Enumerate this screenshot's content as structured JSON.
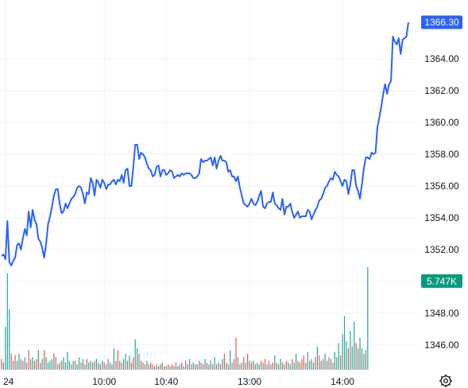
{
  "chart_data": {
    "type": "line",
    "colors": {
      "price_line": "#2962ff",
      "volume_up": "#26a69a",
      "volume_down": "#ef5350",
      "last_price_badge": "#2962ff",
      "volume_badge": "#089981",
      "grid": "#f0f3fa"
    },
    "price_axis": {
      "ticks": [
        1346.0,
        1348.0,
        1350.0,
        1352.0,
        1354.0,
        1356.0,
        1358.0,
        1360.0,
        1362.0,
        1364.0
      ],
      "tick_labels": [
        "1346.00",
        "1348.00",
        "1350.00",
        "1352.00",
        "1354.00",
        "1356.00",
        "1358.00",
        "1360.00",
        "1362.00",
        "1364.00"
      ],
      "range": [
        1344.4,
        1367.7
      ]
    },
    "time_axis": {
      "tick_labels": [
        "24",
        "10:00",
        "10:40",
        "13:00",
        "14:00"
      ],
      "tick_index": [
        2,
        53,
        85,
        128,
        176
      ]
    },
    "last_price": {
      "label": "1366.30",
      "value": 1366.3
    },
    "last_volume": {
      "label": "5.747K"
    },
    "series": [
      {
        "values": [
          1351.6,
          1351.7,
          1351.4,
          1353.8,
          1351.2,
          1351.0,
          1351.3,
          1351.5,
          1352.3,
          1352.4,
          1352.0,
          1352.7,
          1353.3,
          1352.9,
          1354.4,
          1353.4,
          1354.5,
          1353.9,
          1353.6,
          1352.7,
          1352.5,
          1352.1,
          1351.5,
          1352.4,
          1353.6,
          1354.1,
          1354.7,
          1355.4,
          1355.8,
          1355.8,
          1354.9,
          1354.3,
          1354.4,
          1354.9,
          1354.6,
          1354.9,
          1355.2,
          1355.3,
          1355.5,
          1355.9,
          1356.0,
          1355.9,
          1355.5,
          1354.9,
          1355.6,
          1355.5,
          1356.5,
          1356.2,
          1355.4,
          1356.4,
          1356.2,
          1355.9,
          1356.4,
          1356.2,
          1355.8,
          1356.1,
          1356.1,
          1356.3,
          1356.4,
          1356.1,
          1356.4,
          1356.3,
          1356.7,
          1356.2,
          1357.0,
          1357.1,
          1356.0,
          1356.0,
          1357.2,
          1358.6,
          1358.6,
          1357.7,
          1358.1,
          1358.0,
          1357.8,
          1357.4,
          1357.1,
          1357.0,
          1356.6,
          1356.7,
          1357.2,
          1357.3,
          1356.6,
          1357.0,
          1357.0,
          1356.7,
          1356.8,
          1357.0,
          1356.9,
          1356.5,
          1356.6,
          1356.7,
          1356.6,
          1356.8,
          1356.7,
          1356.8,
          1356.8,
          1356.8,
          1356.7,
          1356.5,
          1356.5,
          1356.6,
          1356.8,
          1357.7,
          1357.5,
          1357.6,
          1357.6,
          1357.7,
          1357.8,
          1357.3,
          1357.8,
          1357.1,
          1357.6,
          1357.9,
          1357.6,
          1357.6,
          1357.5,
          1356.9,
          1357.0,
          1356.6,
          1356.6,
          1356.3,
          1356.6,
          1355.9,
          1355.4,
          1354.9,
          1354.8,
          1354.7,
          1354.9,
          1355.2,
          1354.9,
          1354.8,
          1355.0,
          1355.4,
          1355.7,
          1354.7,
          1354.6,
          1354.9,
          1355.0,
          1355.0,
          1355.6,
          1354.9,
          1354.8,
          1354.6,
          1354.5,
          1355.2,
          1354.2,
          1354.7,
          1354.7,
          1354.9,
          1354.4,
          1354.0,
          1354.2,
          1354.4,
          1354.0,
          1354.1,
          1354.1,
          1354.1,
          1354.5,
          1354.4,
          1353.9,
          1354.2,
          1354.5,
          1354.7,
          1355.1,
          1355.2,
          1355.5,
          1355.9,
          1356.0,
          1356.3,
          1356.5,
          1356.4,
          1356.9,
          1356.7,
          1356.6,
          1356.3,
          1356.0,
          1356.4,
          1356.3,
          1355.5,
          1356.1,
          1357.0,
          1357.0,
          1356.0,
          1355.7,
          1355.2,
          1356.1,
          1357.1,
          1357.8,
          1357.8,
          1357.7,
          1358.1,
          1358.0,
          1358.1,
          1359.7,
          1360.3,
          1361.0,
          1361.8,
          1362.4,
          1361.8,
          1362.4,
          1362.6,
          1365.4,
          1365.1,
          1364.9,
          1365.3,
          1364.3,
          1365.2,
          1365.3,
          1365.4,
          1366.3
        ]
      }
    ],
    "volume": [
      {
        "v": 0.6,
        "up": false
      },
      {
        "v": 0.4,
        "up": true
      },
      {
        "v": 2.4,
        "up": true
      },
      {
        "v": 5.4,
        "up": true
      },
      {
        "v": 3.4,
        "up": true
      },
      {
        "v": 0.9,
        "up": false
      },
      {
        "v": 0.5,
        "up": true
      },
      {
        "v": 0.8,
        "up": false
      },
      {
        "v": 0.5,
        "up": true
      },
      {
        "v": 0.9,
        "up": true
      },
      {
        "v": 0.6,
        "up": false
      },
      {
        "v": 0.5,
        "up": true
      },
      {
        "v": 0.7,
        "up": true
      },
      {
        "v": 0.4,
        "up": false
      },
      {
        "v": 1.1,
        "up": false
      },
      {
        "v": 0.6,
        "up": true
      },
      {
        "v": 0.7,
        "up": true
      },
      {
        "v": 0.5,
        "up": false
      },
      {
        "v": 0.6,
        "up": false
      },
      {
        "v": 1.1,
        "up": true
      },
      {
        "v": 0.4,
        "up": false
      },
      {
        "v": 0.6,
        "up": true
      },
      {
        "v": 1.1,
        "up": false
      },
      {
        "v": 0.7,
        "up": true
      },
      {
        "v": 0.4,
        "up": true
      },
      {
        "v": 0.5,
        "up": true
      },
      {
        "v": 0.6,
        "up": true
      },
      {
        "v": 0.9,
        "up": false
      },
      {
        "v": 0.7,
        "up": true
      },
      {
        "v": 0.3,
        "up": false
      },
      {
        "v": 0.4,
        "up": true
      },
      {
        "v": 0.5,
        "up": false
      },
      {
        "v": 0.7,
        "up": true
      },
      {
        "v": 0.4,
        "up": true
      },
      {
        "v": 1.0,
        "up": true
      },
      {
        "v": 0.5,
        "up": true
      },
      {
        "v": 0.3,
        "up": false
      },
      {
        "v": 0.5,
        "up": true
      },
      {
        "v": 0.5,
        "up": false
      },
      {
        "v": 0.3,
        "up": true
      },
      {
        "v": 0.7,
        "up": true
      },
      {
        "v": 0.4,
        "up": false
      },
      {
        "v": 0.6,
        "up": true
      },
      {
        "v": 0.3,
        "up": true
      },
      {
        "v": 0.6,
        "up": false
      },
      {
        "v": 0.4,
        "up": true
      },
      {
        "v": 0.5,
        "up": true
      },
      {
        "v": 0.4,
        "up": false
      },
      {
        "v": 0.5,
        "up": true
      },
      {
        "v": 0.6,
        "up": true
      },
      {
        "v": 0.4,
        "up": false
      },
      {
        "v": 0.3,
        "up": true
      },
      {
        "v": 0.5,
        "up": true
      },
      {
        "v": 0.4,
        "up": false
      },
      {
        "v": 0.3,
        "up": true
      },
      {
        "v": 0.6,
        "up": false
      },
      {
        "v": 0.4,
        "up": true
      },
      {
        "v": 0.3,
        "up": true
      },
      {
        "v": 1.2,
        "up": true
      },
      {
        "v": 0.5,
        "up": false
      },
      {
        "v": 1.1,
        "up": false
      },
      {
        "v": 0.5,
        "up": true
      },
      {
        "v": 0.4,
        "up": false
      },
      {
        "v": 0.6,
        "up": true
      },
      {
        "v": 0.9,
        "up": true
      },
      {
        "v": 0.5,
        "up": false
      },
      {
        "v": 0.8,
        "up": true
      },
      {
        "v": 0.4,
        "up": false
      },
      {
        "v": 0.7,
        "up": false
      },
      {
        "v": 1.7,
        "up": true
      },
      {
        "v": 1.2,
        "up": true
      },
      {
        "v": 0.9,
        "up": false
      },
      {
        "v": 0.5,
        "up": true
      },
      {
        "v": 0.4,
        "up": false
      },
      {
        "v": 0.3,
        "up": false
      },
      {
        "v": 0.5,
        "up": true
      },
      {
        "v": 0.3,
        "up": true
      },
      {
        "v": 0.4,
        "up": false
      },
      {
        "v": 0.3,
        "up": false
      },
      {
        "v": 0.2,
        "up": true
      },
      {
        "v": 0.3,
        "up": false
      },
      {
        "v": 0.2,
        "up": true
      },
      {
        "v": 0.3,
        "up": false
      },
      {
        "v": 0.4,
        "up": true
      },
      {
        "v": 0.2,
        "up": false
      },
      {
        "v": 0.2,
        "up": true
      },
      {
        "v": 0.3,
        "up": false
      },
      {
        "v": 0.2,
        "up": true
      },
      {
        "v": 0.3,
        "up": false
      },
      {
        "v": 0.2,
        "up": true
      },
      {
        "v": 0.4,
        "up": false
      },
      {
        "v": 0.2,
        "up": true
      },
      {
        "v": 0.3,
        "up": true
      },
      {
        "v": 0.4,
        "up": false
      },
      {
        "v": 0.2,
        "up": true
      },
      {
        "v": 0.5,
        "up": false
      },
      {
        "v": 0.3,
        "up": true
      },
      {
        "v": 0.6,
        "up": true
      },
      {
        "v": 0.3,
        "up": false
      },
      {
        "v": 0.4,
        "up": true
      },
      {
        "v": 0.3,
        "up": false
      },
      {
        "v": 0.3,
        "up": true
      },
      {
        "v": 0.5,
        "up": false
      },
      {
        "v": 0.4,
        "up": true
      },
      {
        "v": 0.3,
        "up": false
      },
      {
        "v": 0.6,
        "up": true
      },
      {
        "v": 0.4,
        "up": false
      },
      {
        "v": 0.3,
        "up": true
      },
      {
        "v": 0.5,
        "up": true
      },
      {
        "v": 0.3,
        "up": false
      },
      {
        "v": 0.7,
        "up": true
      },
      {
        "v": 0.3,
        "up": false
      },
      {
        "v": 0.4,
        "up": true
      },
      {
        "v": 0.3,
        "up": false
      },
      {
        "v": 0.6,
        "up": true
      },
      {
        "v": 0.9,
        "up": false
      },
      {
        "v": 0.4,
        "up": true
      },
      {
        "v": 0.3,
        "up": false
      },
      {
        "v": 1.1,
        "up": true
      },
      {
        "v": 0.4,
        "up": true
      },
      {
        "v": 0.6,
        "up": false
      },
      {
        "v": 1.8,
        "up": false
      },
      {
        "v": 0.7,
        "up": true
      },
      {
        "v": 0.3,
        "up": false
      },
      {
        "v": 0.4,
        "up": true
      },
      {
        "v": 0.7,
        "up": false
      },
      {
        "v": 0.4,
        "up": true
      },
      {
        "v": 0.9,
        "up": false
      },
      {
        "v": 0.5,
        "up": true
      },
      {
        "v": 0.4,
        "up": false
      },
      {
        "v": 0.5,
        "up": true
      },
      {
        "v": 0.3,
        "up": false
      },
      {
        "v": 0.4,
        "up": true
      },
      {
        "v": 0.3,
        "up": true
      },
      {
        "v": 0.5,
        "up": false
      },
      {
        "v": 0.4,
        "up": true
      },
      {
        "v": 0.6,
        "up": false
      },
      {
        "v": 0.3,
        "up": true
      },
      {
        "v": 0.5,
        "up": false
      },
      {
        "v": 0.3,
        "up": true
      },
      {
        "v": 0.4,
        "up": false
      },
      {
        "v": 0.8,
        "up": true
      },
      {
        "v": 0.4,
        "up": false
      },
      {
        "v": 0.3,
        "up": true
      },
      {
        "v": 0.6,
        "up": true
      },
      {
        "v": 0.4,
        "up": false
      },
      {
        "v": 0.3,
        "up": true
      },
      {
        "v": 0.5,
        "up": false
      },
      {
        "v": 0.4,
        "up": true
      },
      {
        "v": 0.3,
        "up": true
      },
      {
        "v": 0.6,
        "up": false
      },
      {
        "v": 0.4,
        "up": true
      },
      {
        "v": 0.9,
        "up": true
      },
      {
        "v": 0.5,
        "up": false
      },
      {
        "v": 0.4,
        "up": true
      },
      {
        "v": 0.6,
        "up": false
      },
      {
        "v": 0.8,
        "up": false
      },
      {
        "v": 0.4,
        "up": true
      },
      {
        "v": 1.0,
        "up": true
      },
      {
        "v": 0.5,
        "up": false
      },
      {
        "v": 0.6,
        "up": true
      },
      {
        "v": 0.4,
        "up": true
      },
      {
        "v": 0.7,
        "up": false
      },
      {
        "v": 1.3,
        "up": true
      },
      {
        "v": 0.8,
        "up": false
      },
      {
        "v": 0.5,
        "up": true
      },
      {
        "v": 0.6,
        "up": false
      },
      {
        "v": 0.9,
        "up": true
      },
      {
        "v": 0.5,
        "up": true
      },
      {
        "v": 0.7,
        "up": false
      },
      {
        "v": 0.6,
        "up": true
      },
      {
        "v": 0.4,
        "up": false
      },
      {
        "v": 1.0,
        "up": true
      },
      {
        "v": 0.7,
        "up": true
      },
      {
        "v": 1.5,
        "up": true
      },
      {
        "v": 0.8,
        "up": false
      },
      {
        "v": 2.0,
        "up": true
      },
      {
        "v": 3.0,
        "up": true
      },
      {
        "v": 1.6,
        "up": true
      },
      {
        "v": 1.2,
        "up": false
      },
      {
        "v": 2.2,
        "up": true
      },
      {
        "v": 1.3,
        "up": true
      },
      {
        "v": 2.7,
        "up": true
      },
      {
        "v": 1.5,
        "up": false
      },
      {
        "v": 1.2,
        "up": true
      },
      {
        "v": 1.8,
        "up": true
      },
      {
        "v": 1.2,
        "up": true
      },
      {
        "v": 0.9,
        "up": false
      },
      {
        "v": 1.1,
        "up": true
      },
      {
        "v": 5.747,
        "up": true
      }
    ],
    "grid": true
  }
}
